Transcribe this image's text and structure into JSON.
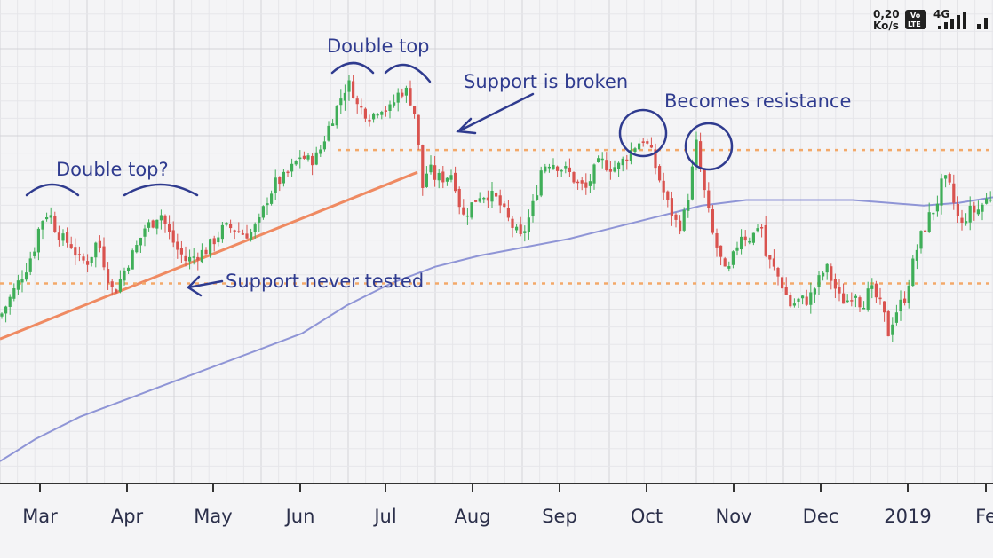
{
  "status_bar": {
    "speed_value": "0,20",
    "speed_unit": "Ko/s",
    "volte_top": "Vo",
    "volte_bottom": "LTE",
    "network": "4G",
    "signal_bars": 4
  },
  "colors": {
    "background": "#f4f4f6",
    "grid_minor": "#e6e6ea",
    "grid_major": "#d3d3d8",
    "bull": "#3fae58",
    "bear": "#d9534f",
    "moving_average": "#8f95d6",
    "trendline": "#ef8a62",
    "support_level": "#f3a96a",
    "annotation": "#2f3b8f",
    "axis": "#333333"
  },
  "annotations": {
    "double_top_q": "Double top?",
    "double_top": "Double top",
    "support_broken": "Support is broken",
    "becomes_resistance": "Becomes resistance",
    "support_never_tested": "Support never tested"
  },
  "chart_data": {
    "type": "candlestick",
    "x_tick_labels": [
      "Mar",
      "Apr",
      "May",
      "Jun",
      "Jul",
      "Aug",
      "Sep",
      "Oct",
      "Nov",
      "Dec",
      "2019",
      "Fe"
    ],
    "y_axis_labels_shown": false,
    "grid": true,
    "legend": "none",
    "levels": {
      "upper_support_resistance": 100,
      "lower_support": 76
    },
    "price_series": [
      [
        0,
        70
      ],
      [
        10,
        73
      ],
      [
        20,
        76
      ],
      [
        30,
        79
      ],
      [
        40,
        83
      ],
      [
        45,
        87
      ],
      [
        55,
        89
      ],
      [
        62,
        86
      ],
      [
        70,
        84
      ],
      [
        80,
        83
      ],
      [
        90,
        80
      ],
      [
        100,
        80
      ],
      [
        110,
        84
      ],
      [
        120,
        78
      ],
      [
        128,
        74
      ],
      [
        136,
        77
      ],
      [
        145,
        80
      ],
      [
        155,
        83
      ],
      [
        163,
        86
      ],
      [
        172,
        87
      ],
      [
        180,
        89
      ],
      [
        190,
        85
      ],
      [
        200,
        82
      ],
      [
        210,
        80
      ],
      [
        220,
        81
      ],
      [
        232,
        82
      ],
      [
        242,
        84
      ],
      [
        252,
        86
      ],
      [
        262,
        86
      ],
      [
        272,
        85
      ],
      [
        282,
        85
      ],
      [
        292,
        87
      ],
      [
        300,
        91
      ],
      [
        310,
        94
      ],
      [
        320,
        95
      ],
      [
        330,
        97
      ],
      [
        338,
        99
      ],
      [
        348,
        98
      ],
      [
        358,
        99
      ],
      [
        365,
        102
      ],
      [
        372,
        105
      ],
      [
        380,
        108
      ],
      [
        388,
        111
      ],
      [
        395,
        112
      ],
      [
        402,
        108
      ],
      [
        410,
        107
      ],
      [
        418,
        106
      ],
      [
        428,
        108
      ],
      [
        438,
        107
      ],
      [
        448,
        110
      ],
      [
        456,
        111
      ],
      [
        462,
        109
      ],
      [
        468,
        106
      ],
      [
        472,
        99
      ],
      [
        476,
        93
      ],
      [
        482,
        97
      ],
      [
        490,
        95
      ],
      [
        500,
        95
      ],
      [
        510,
        96
      ],
      [
        516,
        91
      ],
      [
        522,
        88
      ],
      [
        530,
        90
      ],
      [
        540,
        92
      ],
      [
        550,
        92
      ],
      [
        560,
        91
      ],
      [
        570,
        88
      ],
      [
        578,
        86
      ],
      [
        586,
        84
      ],
      [
        594,
        87
      ],
      [
        602,
        91
      ],
      [
        610,
        97
      ],
      [
        620,
        98
      ],
      [
        630,
        97
      ],
      [
        640,
        96
      ],
      [
        650,
        94
      ],
      [
        660,
        93
      ],
      [
        668,
        96
      ],
      [
        676,
        98
      ],
      [
        686,
        97
      ],
      [
        696,
        97
      ],
      [
        706,
        99
      ],
      [
        716,
        101
      ],
      [
        724,
        102
      ],
      [
        732,
        100
      ],
      [
        738,
        97
      ],
      [
        744,
        94
      ],
      [
        750,
        91
      ],
      [
        758,
        88
      ],
      [
        764,
        86
      ],
      [
        772,
        89
      ],
      [
        778,
        95
      ],
      [
        784,
        101
      ],
      [
        790,
        95
      ],
      [
        796,
        90
      ],
      [
        802,
        85
      ],
      [
        810,
        81
      ],
      [
        818,
        77
      ],
      [
        826,
        81
      ],
      [
        834,
        85
      ],
      [
        842,
        84
      ],
      [
        850,
        85
      ],
      [
        856,
        88
      ],
      [
        862,
        81
      ],
      [
        870,
        79
      ],
      [
        880,
        76
      ],
      [
        890,
        72
      ],
      [
        900,
        73
      ],
      [
        910,
        73
      ],
      [
        920,
        76
      ],
      [
        930,
        79
      ],
      [
        938,
        76
      ],
      [
        946,
        73
      ],
      [
        954,
        73
      ],
      [
        962,
        75
      ],
      [
        970,
        72
      ],
      [
        980,
        75
      ],
      [
        988,
        73
      ],
      [
        994,
        71
      ],
      [
        1000,
        67
      ],
      [
        1006,
        70
      ],
      [
        1012,
        72
      ],
      [
        1018,
        73
      ],
      [
        1024,
        77
      ],
      [
        1030,
        81
      ],
      [
        1038,
        85
      ],
      [
        1046,
        88
      ],
      [
        1054,
        90
      ],
      [
        1062,
        95
      ],
      [
        1070,
        93
      ],
      [
        1076,
        89
      ],
      [
        1082,
        86
      ],
      [
        1090,
        89
      ],
      [
        1100,
        89
      ],
      [
        1110,
        91
      ],
      [
        1118,
        92
      ]
    ],
    "moving_average_points": [
      [
        0,
        44
      ],
      [
        40,
        48
      ],
      [
        90,
        52
      ],
      [
        140,
        55
      ],
      [
        190,
        58
      ],
      [
        240,
        61
      ],
      [
        290,
        64
      ],
      [
        340,
        67
      ],
      [
        390,
        72
      ],
      [
        440,
        76
      ],
      [
        490,
        79
      ],
      [
        540,
        81
      ],
      [
        590,
        82.5
      ],
      [
        640,
        84
      ],
      [
        690,
        86
      ],
      [
        740,
        88
      ],
      [
        790,
        90
      ],
      [
        840,
        91
      ],
      [
        900,
        91
      ],
      [
        960,
        91
      ],
      [
        1000,
        90.5
      ],
      [
        1040,
        90
      ],
      [
        1080,
        90.5
      ],
      [
        1118,
        91.5
      ]
    ],
    "trendline_points": [
      [
        0,
        66
      ],
      [
        470,
        96
      ]
    ]
  }
}
